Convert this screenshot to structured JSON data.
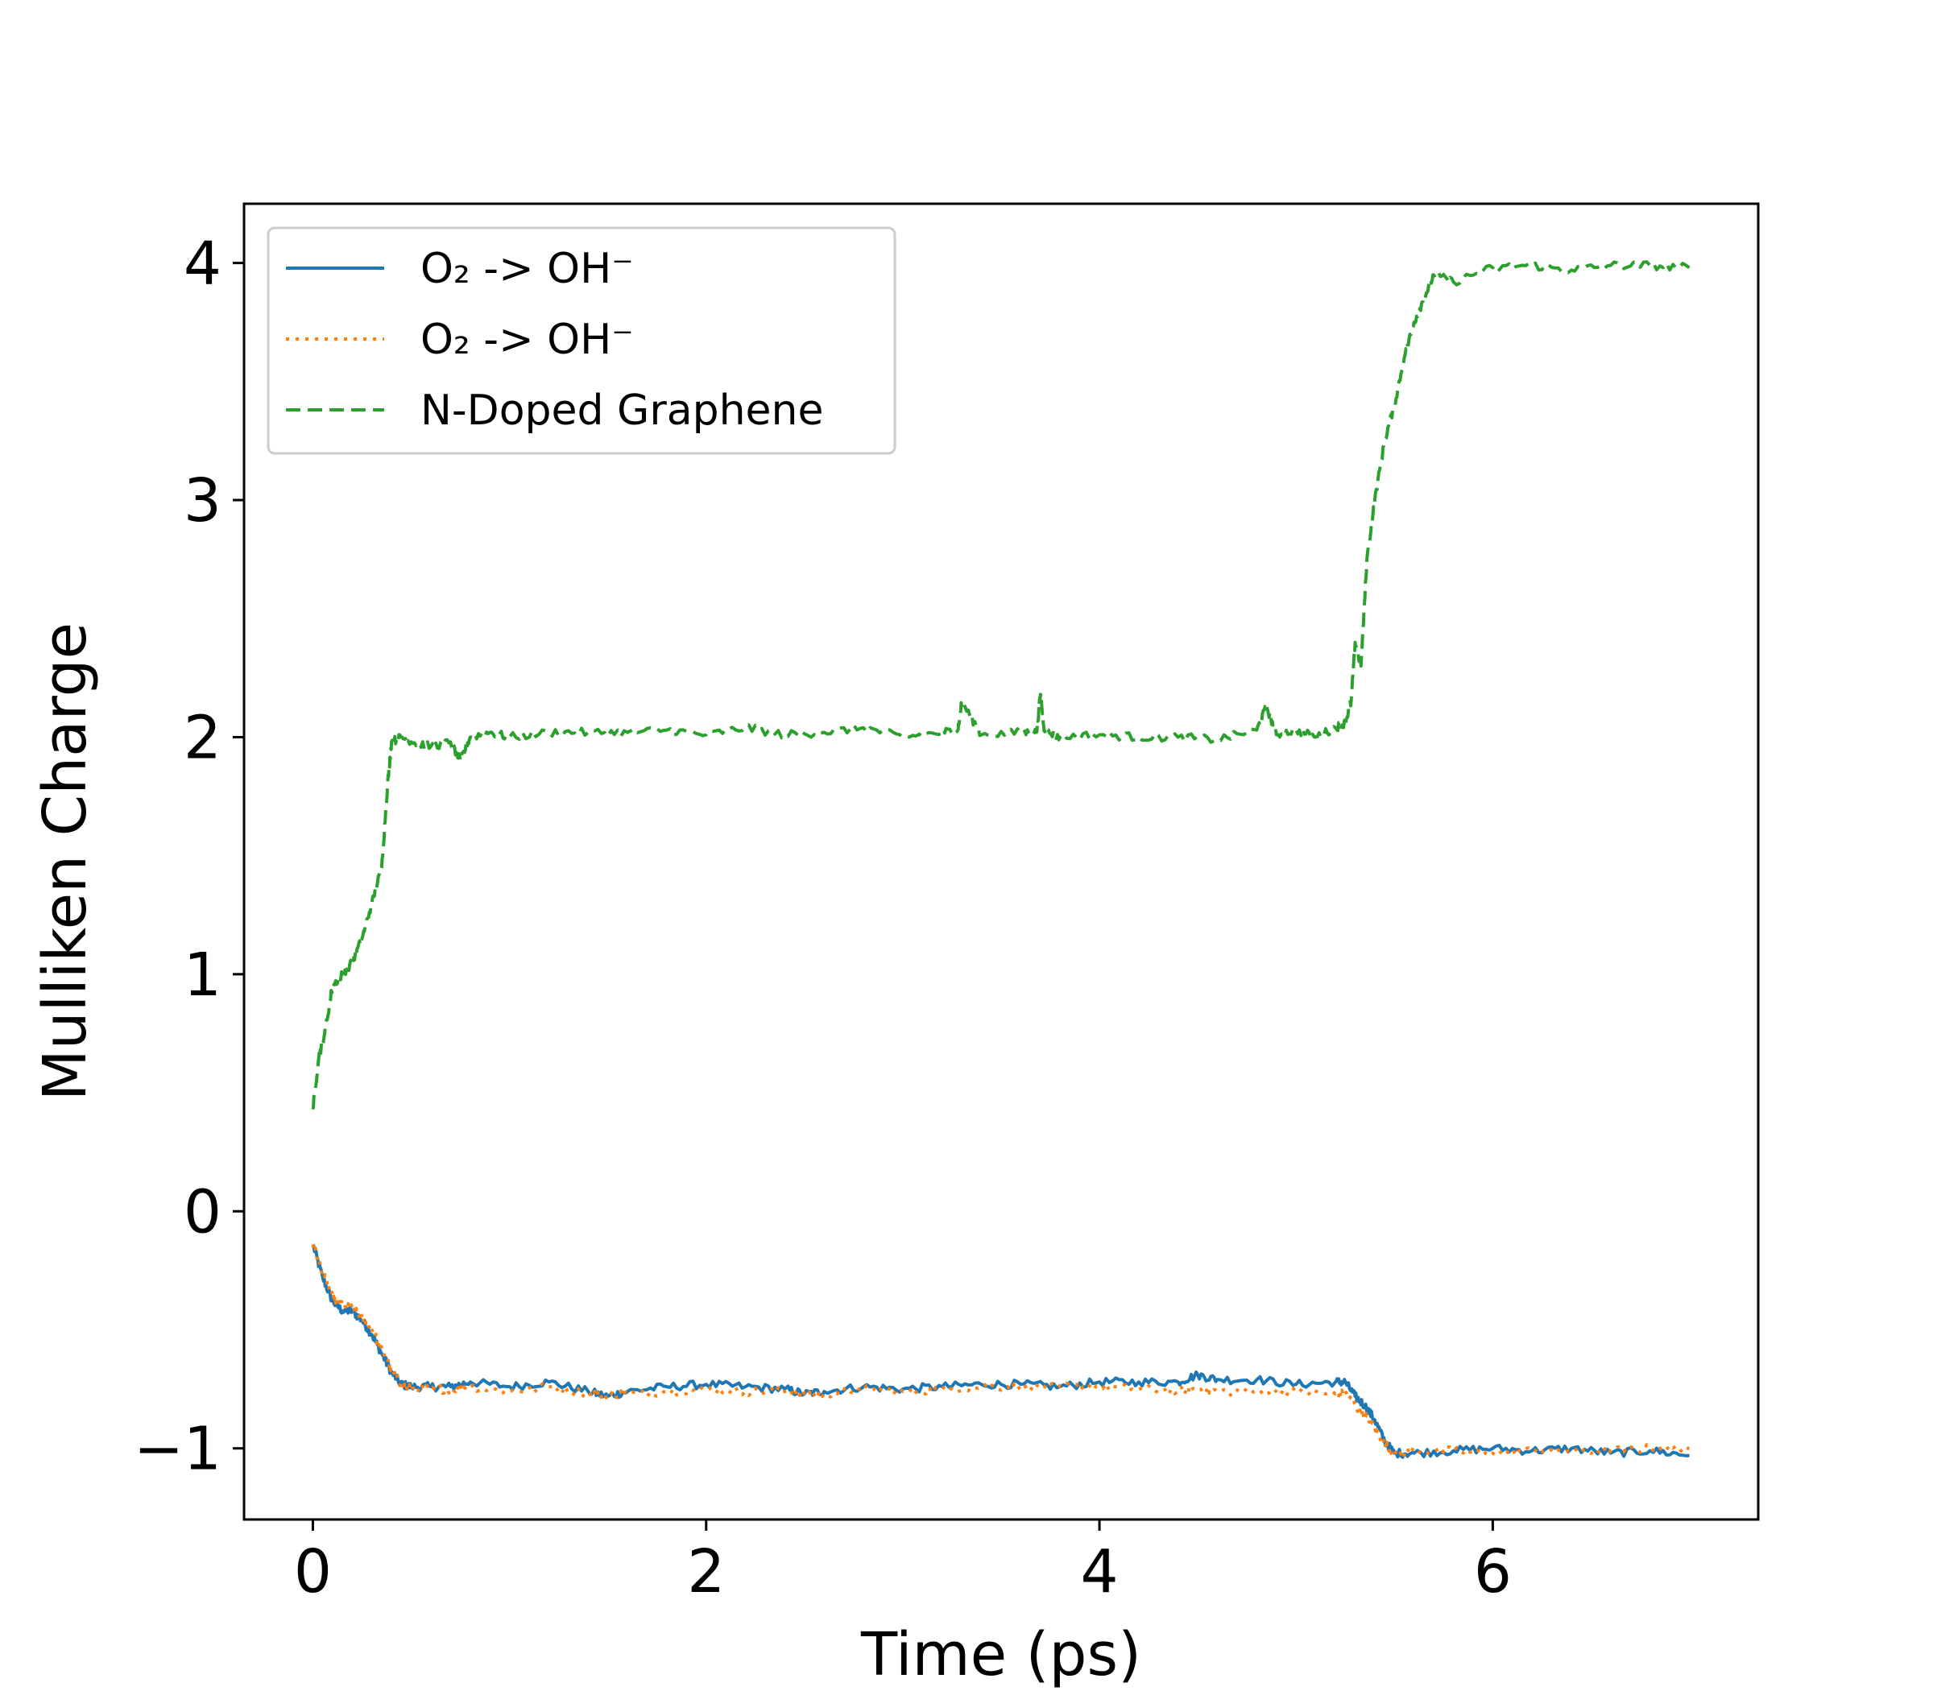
{
  "chart_data": {
    "type": "line",
    "title": "",
    "xlabel": "Time (ps)",
    "ylabel": "Mulliken Charge",
    "xlim": [
      -0.35,
      7.35
    ],
    "ylim": [
      -1.3,
      4.25
    ],
    "x_ticks": [
      0,
      2,
      4,
      6
    ],
    "y_ticks": [
      -1,
      0,
      1,
      2,
      3,
      4
    ],
    "x_tick_labels": [
      "0",
      "2",
      "4",
      "6"
    ],
    "y_tick_labels": [
      "−1",
      "0",
      "1",
      "2",
      "3",
      "4"
    ],
    "grid": false,
    "legend_position": "top-left",
    "series": [
      {
        "name": "O₂ -> OH⁻",
        "style": "solid",
        "color": "#1f77b4",
        "x": [
          0,
          0.05,
          0.1,
          0.15,
          0.2,
          0.25,
          0.3,
          0.35,
          0.4,
          0.45,
          0.5,
          0.6,
          0.7,
          0.8,
          1.0,
          1.2,
          1.4,
          1.5,
          1.6,
          1.8,
          2.0,
          2.2,
          2.4,
          2.5,
          2.6,
          2.8,
          3.0,
          3.2,
          3.4,
          3.6,
          3.8,
          4.0,
          4.2,
          4.4,
          4.5,
          4.6,
          4.8,
          5.0,
          5.2,
          5.25,
          5.3,
          5.35,
          5.4,
          5.45,
          5.5,
          5.6,
          5.8,
          6.0,
          6.2,
          6.4,
          6.6,
          6.8,
          7.0
        ],
        "y": [
          -0.14,
          -0.28,
          -0.38,
          -0.42,
          -0.42,
          -0.46,
          -0.52,
          -0.6,
          -0.68,
          -0.73,
          -0.74,
          -0.74,
          -0.74,
          -0.72,
          -0.74,
          -0.72,
          -0.76,
          -0.78,
          -0.76,
          -0.74,
          -0.73,
          -0.74,
          -0.75,
          -0.77,
          -0.76,
          -0.74,
          -0.75,
          -0.74,
          -0.73,
          -0.73,
          -0.74,
          -0.72,
          -0.72,
          -0.72,
          -0.69,
          -0.71,
          -0.71,
          -0.73,
          -0.72,
          -0.72,
          -0.78,
          -0.82,
          -0.88,
          -0.97,
          -1.02,
          -1.02,
          -1.01,
          -1.0,
          -1.01,
          -1.0,
          -1.02,
          -1.01,
          -1.03
        ]
      },
      {
        "name": "O₂ -> OH⁻",
        "style": "dotted",
        "color": "#ff7f0e",
        "x": [
          0,
          0.05,
          0.1,
          0.15,
          0.2,
          0.25,
          0.3,
          0.35,
          0.4,
          0.45,
          0.5,
          0.6,
          0.7,
          0.8,
          1.0,
          1.2,
          1.4,
          1.5,
          1.6,
          1.8,
          2.0,
          2.2,
          2.4,
          2.5,
          2.6,
          2.8,
          3.0,
          3.2,
          3.4,
          3.6,
          3.8,
          4.0,
          4.2,
          4.4,
          4.5,
          4.6,
          4.8,
          5.0,
          5.2,
          5.25,
          5.3,
          5.35,
          5.4,
          5.45,
          5.5,
          5.6,
          5.8,
          6.0,
          6.2,
          6.4,
          6.6,
          6.8,
          7.0
        ],
        "y": [
          -0.14,
          -0.26,
          -0.36,
          -0.4,
          -0.41,
          -0.45,
          -0.5,
          -0.58,
          -0.67,
          -0.73,
          -0.75,
          -0.75,
          -0.75,
          -0.74,
          -0.76,
          -0.74,
          -0.77,
          -0.77,
          -0.77,
          -0.76,
          -0.75,
          -0.76,
          -0.76,
          -0.77,
          -0.77,
          -0.75,
          -0.76,
          -0.75,
          -0.74,
          -0.74,
          -0.74,
          -0.74,
          -0.75,
          -0.76,
          -0.75,
          -0.76,
          -0.76,
          -0.76,
          -0.77,
          -0.77,
          -0.82,
          -0.86,
          -0.91,
          -0.98,
          -1.02,
          -1.01,
          -1.01,
          -1.02,
          -1.01,
          -1.01,
          -1.01,
          -1.0,
          -1.0
        ]
      },
      {
        "name": "N-Doped Graphene",
        "style": "dashed",
        "color": "#2ca02c",
        "x": [
          0,
          0.03,
          0.06,
          0.1,
          0.15,
          0.2,
          0.25,
          0.3,
          0.35,
          0.38,
          0.4,
          0.45,
          0.5,
          0.6,
          0.7,
          0.75,
          0.8,
          0.9,
          1.0,
          1.2,
          1.4,
          1.6,
          1.8,
          2.0,
          2.2,
          2.4,
          2.6,
          2.8,
          3.0,
          3.2,
          3.28,
          3.3,
          3.4,
          3.6,
          3.68,
          3.7,
          3.72,
          3.8,
          4.0,
          4.2,
          4.4,
          4.6,
          4.8,
          4.85,
          4.9,
          5.0,
          5.1,
          5.2,
          5.25,
          5.28,
          5.3,
          5.33,
          5.36,
          5.4,
          5.45,
          5.5,
          5.55,
          5.6,
          5.65,
          5.7,
          5.8,
          6.0,
          6.2,
          6.4,
          6.6,
          6.8,
          7.0
        ],
        "y": [
          0.43,
          0.65,
          0.75,
          0.95,
          1.0,
          1.05,
          1.15,
          1.3,
          1.45,
          1.8,
          1.98,
          2.0,
          1.98,
          1.96,
          1.98,
          1.9,
          2.0,
          2.02,
          2.0,
          2.02,
          2.02,
          2.02,
          2.03,
          2.01,
          2.04,
          2.01,
          2.02,
          2.04,
          2.0,
          2.02,
          2.03,
          2.15,
          2.01,
          2.02,
          2.02,
          2.18,
          2.03,
          2.0,
          2.01,
          2.0,
          2.0,
          1.99,
          2.03,
          2.13,
          2.01,
          2.03,
          2.0,
          2.04,
          2.06,
          2.15,
          2.4,
          2.3,
          2.75,
          3.0,
          3.25,
          3.4,
          3.6,
          3.75,
          3.85,
          3.95,
          3.92,
          3.98,
          3.99,
          3.97,
          3.99,
          3.99,
          3.98
        ]
      }
    ]
  }
}
